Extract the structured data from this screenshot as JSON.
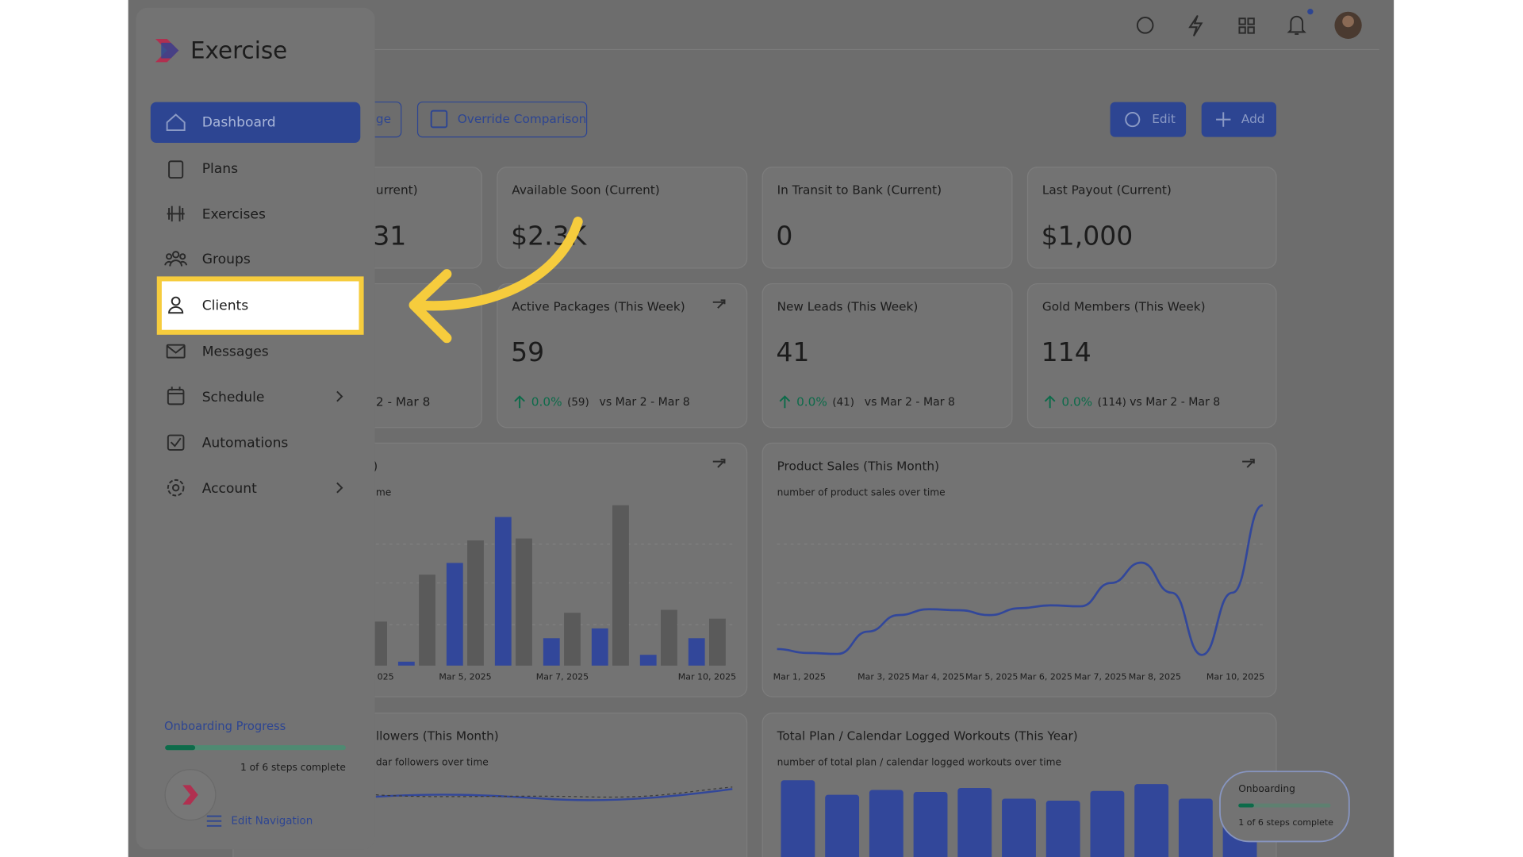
{
  "sidebar": {
    "brand": "Exercise",
    "nav": [
      "Dashboard",
      "Plans",
      "Exercises",
      "Groups",
      "Clients",
      "Messages",
      "Schedule",
      "Automations",
      "Account"
    ],
    "onboarding": {
      "title": "Onboarding Progress",
      "steps": "1 of 6 steps complete",
      "edit": "Edit Navigation"
    }
  },
  "toolbar": {
    "buttons": [
      "ge",
      "Override Comparison",
      "Edit",
      "Add"
    ]
  },
  "cards_row1": [
    {
      "title": "urrent)",
      "value": "31"
    },
    {
      "title": "Available Soon (Current)",
      "value": "$2.3K"
    },
    {
      "title": "In Transit to Bank (Current)",
      "value": "0"
    },
    {
      "title": "Last Payout (Current)",
      "value": "$1,000"
    }
  ],
  "cards_row2": [
    {
      "compare": "2 - Mar 8"
    },
    {
      "title": "Active Packages (This Week)",
      "value": "59",
      "change": "0.0%",
      "count": "(59)",
      "compare": "vs Mar 2 - Mar 8"
    },
    {
      "title": "New Leads (This Week)",
      "value": "41",
      "change": "0.0%",
      "count": "(41)",
      "compare": "vs Mar 2 - Mar 8"
    },
    {
      "title": "Gold Members (This Week)",
      "value": "114",
      "change": "0.0%",
      "count": "(114)",
      "compare": "vs Mar 2 - Mar 8"
    }
  ],
  "bar_chart": {
    "type": "bar",
    "title": ")",
    "subtitle": "me",
    "x_labels": [
      "025",
      "Mar 5, 2025",
      "Mar 7, 2025",
      "Mar 10, 2025"
    ],
    "values": [
      45,
      4,
      93,
      105,
      128,
      152,
      130,
      28,
      54,
      38,
      164,
      11,
      57,
      28,
      48
    ],
    "colors": [
      "#5a5a5a",
      "#32479a",
      "#5a5a5a",
      "#32479a",
      "#5a5a5a",
      "#32479a",
      "#5a5a5a",
      "#32479a",
      "#5a5a5a",
      "#32479a",
      "#5a5a5a",
      "#32479a",
      "#5a5a5a",
      "#32479a",
      "#5a5a5a"
    ]
  },
  "line_chart": {
    "type": "line",
    "title": "Product Sales (This Month)",
    "subtitle": "number of product sales over time",
    "x_labels": [
      "Mar 1, 2025",
      "Mar 3, 2025",
      "Mar 4, 2025",
      "Mar 5, 2025",
      "Mar 6, 2025",
      "Mar 7, 2025",
      "Mar 8, 2025",
      "Mar 10, 2025"
    ],
    "values": [
      17,
      13,
      12,
      35,
      52,
      58,
      57,
      52,
      59,
      62,
      61,
      85,
      106,
      75,
      11,
      75,
      165
    ],
    "color": "#32479a"
  },
  "followers_card": {
    "title": "llowers (This Month)",
    "subtitle": "dar followers over time"
  },
  "workouts_chart": {
    "type": "bar",
    "title": "Total Plan / Calendar Logged Workouts (This Year)",
    "subtitle": "number of total plan / calendar logged workouts over time",
    "values": [
      79,
      64,
      69,
      67,
      71,
      60,
      58,
      68,
      75,
      60,
      70
    ],
    "color": "#32479a"
  },
  "onboarding_widget": {
    "title": "Onboarding",
    "steps": "1 of 6 steps complete"
  }
}
